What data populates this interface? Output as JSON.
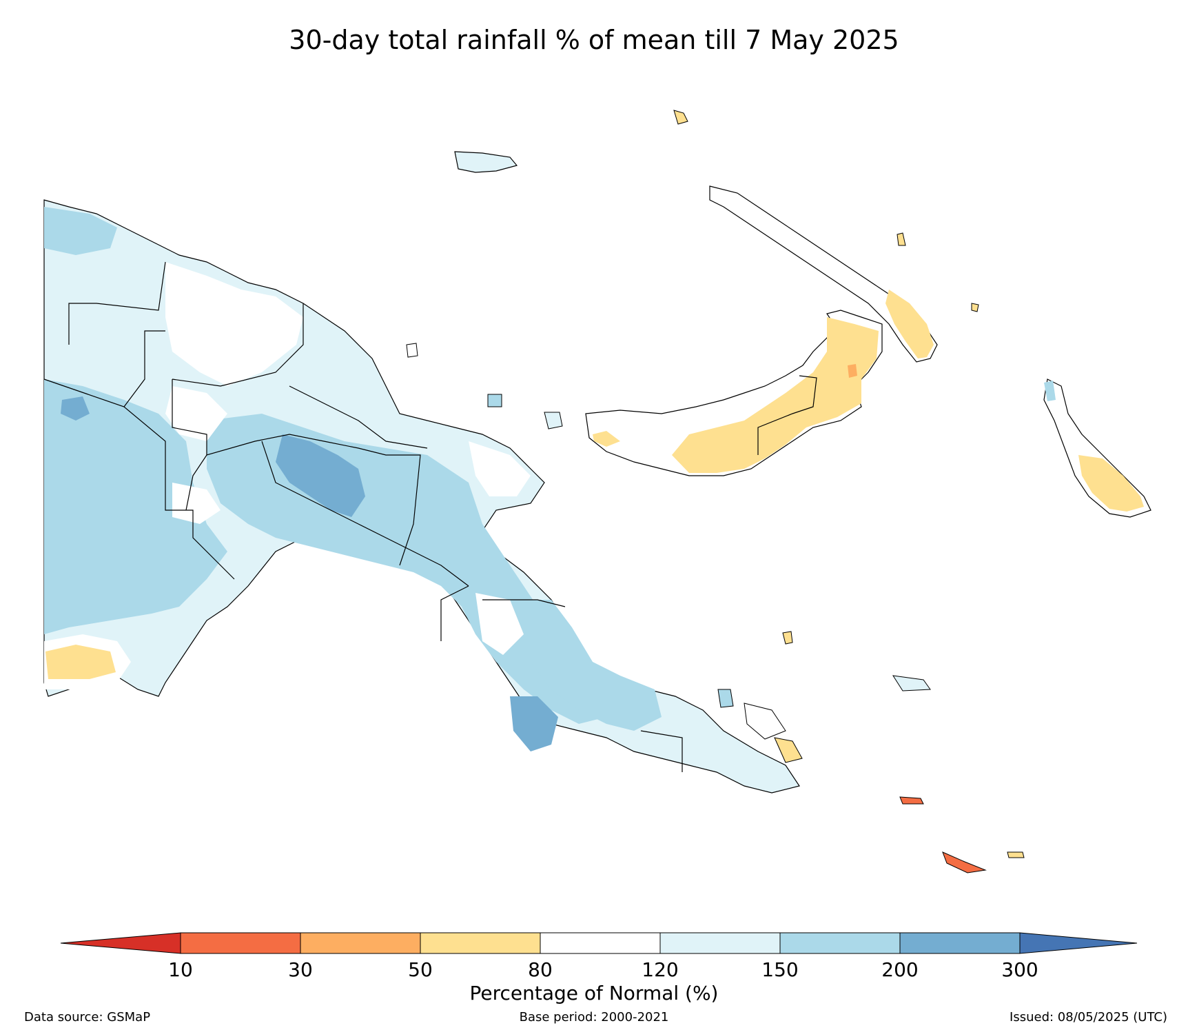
{
  "title": "30-day total rainfall % of mean till 7 May 2025",
  "colorbar": {
    "title": "Percentage of Normal (%)",
    "ticks": [
      "10",
      "30",
      "50",
      "80",
      "120",
      "150",
      "200",
      "300"
    ],
    "colors": {
      "below_10": "#d73027",
      "10_30": "#f46d43",
      "30_50": "#fdae61",
      "50_80": "#fee090",
      "80_120": "#ffffff",
      "120_150": "#e0f3f8",
      "150_200": "#abd9e9",
      "200_300": "#74add1",
      "above_300": "#4575b4"
    }
  },
  "footer": {
    "source": "Data source: GSMaP",
    "base_period": "Base period: 2000-2021",
    "issued": "Issued: 08/05/2025 (UTC)"
  }
}
